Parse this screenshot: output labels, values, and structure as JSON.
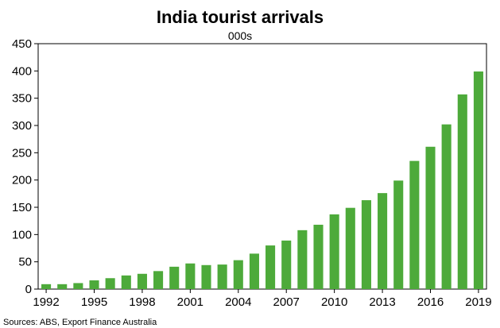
{
  "chart_data": {
    "type": "bar",
    "title": "India tourist arrivals",
    "subtitle": "000s",
    "source": "Sources: ABS, Export Finance Australia",
    "categories": [
      "1992",
      "1993",
      "1994",
      "1995",
      "1996",
      "1997",
      "1998",
      "1999",
      "2000",
      "2001",
      "2002",
      "2003",
      "2004",
      "2005",
      "2006",
      "2007",
      "2008",
      "2009",
      "2010",
      "2011",
      "2012",
      "2013",
      "2014",
      "2015",
      "2016",
      "2017",
      "2018",
      "2019"
    ],
    "x_tick_labels": [
      "1992",
      "1995",
      "1998",
      "2001",
      "2004",
      "2007",
      "2010",
      "2013",
      "2016",
      "2019"
    ],
    "values": [
      9,
      9,
      11,
      16,
      20,
      25,
      28,
      33,
      41,
      47,
      44,
      45,
      53,
      65,
      80,
      89,
      108,
      118,
      137,
      149,
      163,
      176,
      199,
      235,
      261,
      302,
      357,
      399
    ],
    "ylim": [
      0,
      450
    ],
    "y_ticks": [
      0,
      50,
      100,
      150,
      200,
      250,
      300,
      350,
      400,
      450
    ],
    "grid": false,
    "legend": "none",
    "bar_color": "#4daa3a"
  }
}
